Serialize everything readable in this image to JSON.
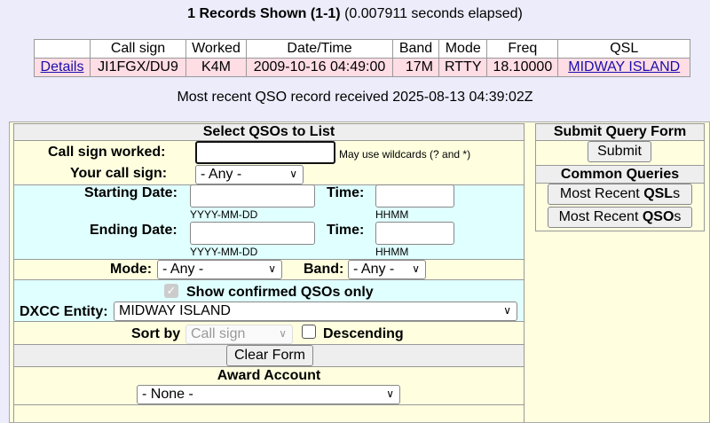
{
  "header": {
    "records": "1 Records Shown (1-1)",
    "elapsed": "(0.007911 seconds elapsed)"
  },
  "results": {
    "columns": [
      "",
      "Call sign",
      "Worked",
      "Date/Time",
      "Band",
      "Mode",
      "Freq",
      "QSL"
    ],
    "rows": [
      {
        "details": "Details",
        "call": "JI1FGX/DU9",
        "worked": "K4M",
        "datetime": "2009-10-16 04:49:00",
        "band": "17M",
        "mode": "RTTY",
        "freq": "18.10000",
        "qsl": "MIDWAY ISLAND"
      }
    ]
  },
  "recent": "Most recent QSO record received 2025-08-13 04:39:02Z",
  "form": {
    "title": "Select QSOs to List",
    "call_worked_label": "Call sign worked:",
    "call_worked_value": "",
    "wildcard_hint": "May use wildcards (? and *)",
    "your_call_label": "Your call sign:",
    "your_call_value": "- Any -",
    "start_date_label": "Starting Date:",
    "end_date_label": "Ending Date:",
    "time_label": "Time:",
    "date_hint": "YYYY-MM-DD",
    "time_hint": "HHMM",
    "mode_label": "Mode:",
    "mode_value": "- Any -",
    "band_label": "Band:",
    "band_value": "- Any -",
    "confirmed_label": "Show confirmed QSOs only",
    "confirmed_checked": true,
    "dxcc_label": "DXCC Entity:",
    "dxcc_value": "MIDWAY ISLAND",
    "sort_label": "Sort by",
    "sort_value": "Call sign",
    "descending_label": "Descending",
    "descending_checked": false,
    "clear_button": "Clear Form",
    "award_label": "Award Account",
    "award_value": "- None -"
  },
  "side": {
    "title": "Submit Query Form",
    "submit": "Submit",
    "common": "Common Queries",
    "q1_pre": "Most Recent ",
    "q1_bold": "QSL",
    "q1_post": "s",
    "q2_pre": "Most Recent ",
    "q2_bold": "QSO",
    "q2_post": "s"
  }
}
